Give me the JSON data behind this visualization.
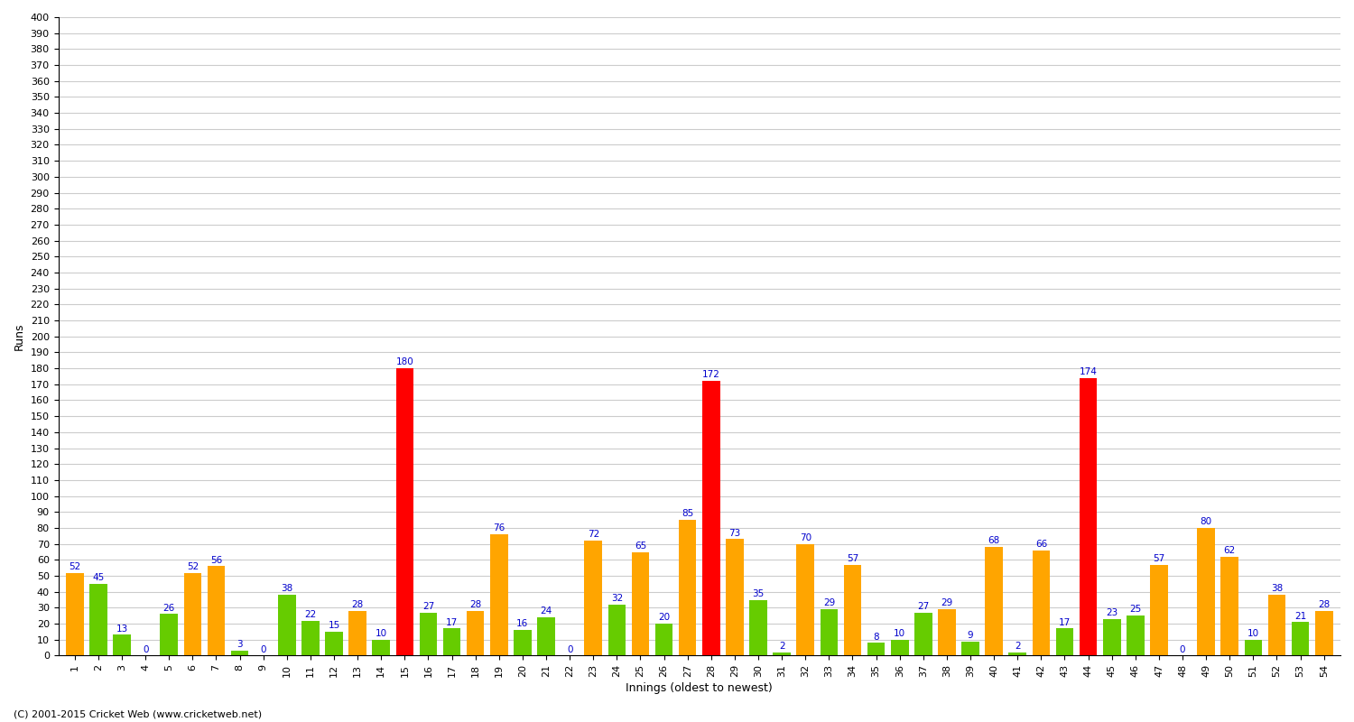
{
  "title": "",
  "xlabel": "Innings (oldest to newest)",
  "ylabel": "Runs",
  "background_color": "#ffffff",
  "grid_color": "#cccccc",
  "innings": [
    1,
    2,
    3,
    4,
    5,
    6,
    7,
    8,
    9,
    10,
    11,
    12,
    13,
    14,
    15,
    16,
    17,
    18,
    19,
    20,
    21,
    22,
    23,
    24,
    25,
    26,
    27,
    28,
    29,
    30,
    31,
    32,
    33,
    34,
    35,
    36,
    37,
    38,
    39,
    40,
    41,
    42,
    43,
    44,
    45,
    46,
    47,
    48,
    49,
    50,
    51,
    52,
    53,
    54
  ],
  "scores": [
    52,
    45,
    13,
    0,
    26,
    52,
    56,
    3,
    0,
    38,
    22,
    15,
    28,
    10,
    180,
    27,
    17,
    28,
    76,
    16,
    24,
    0,
    72,
    32,
    65,
    20,
    85,
    172,
    73,
    35,
    2,
    70,
    29,
    57,
    8,
    10,
    27,
    29,
    9,
    68,
    2,
    66,
    17,
    174,
    23,
    25,
    57,
    0,
    80,
    62,
    10,
    38,
    21,
    28
  ],
  "colors": [
    "orange",
    "green",
    "green",
    "green",
    "green",
    "orange",
    "orange",
    "green",
    "green",
    "green",
    "green",
    "green",
    "orange",
    "green",
    "red",
    "green",
    "green",
    "orange",
    "orange",
    "green",
    "green",
    "green",
    "orange",
    "green",
    "orange",
    "green",
    "orange",
    "red",
    "orange",
    "green",
    "green",
    "orange",
    "green",
    "orange",
    "green",
    "green",
    "green",
    "orange",
    "green",
    "orange",
    "green",
    "orange",
    "green",
    "red",
    "green",
    "green",
    "orange",
    "green",
    "orange",
    "orange",
    "green",
    "orange",
    "green",
    "orange"
  ],
  "ylim": [
    0,
    400
  ],
  "yticks": [
    0,
    10,
    20,
    30,
    40,
    50,
    60,
    70,
    80,
    90,
    100,
    110,
    120,
    130,
    140,
    150,
    160,
    170,
    180,
    190,
    200,
    210,
    220,
    230,
    240,
    250,
    260,
    270,
    280,
    290,
    300,
    310,
    320,
    330,
    340,
    350,
    360,
    370,
    380,
    390,
    400
  ],
  "color_map": {
    "orange": "#FFA500",
    "green": "#66CC00",
    "red": "#FF0000"
  },
  "label_color": "#0000CC",
  "label_fontsize": 7.5,
  "tick_fontsize": 8,
  "footer": "(C) 2001-2015 Cricket Web (www.cricketweb.net)"
}
